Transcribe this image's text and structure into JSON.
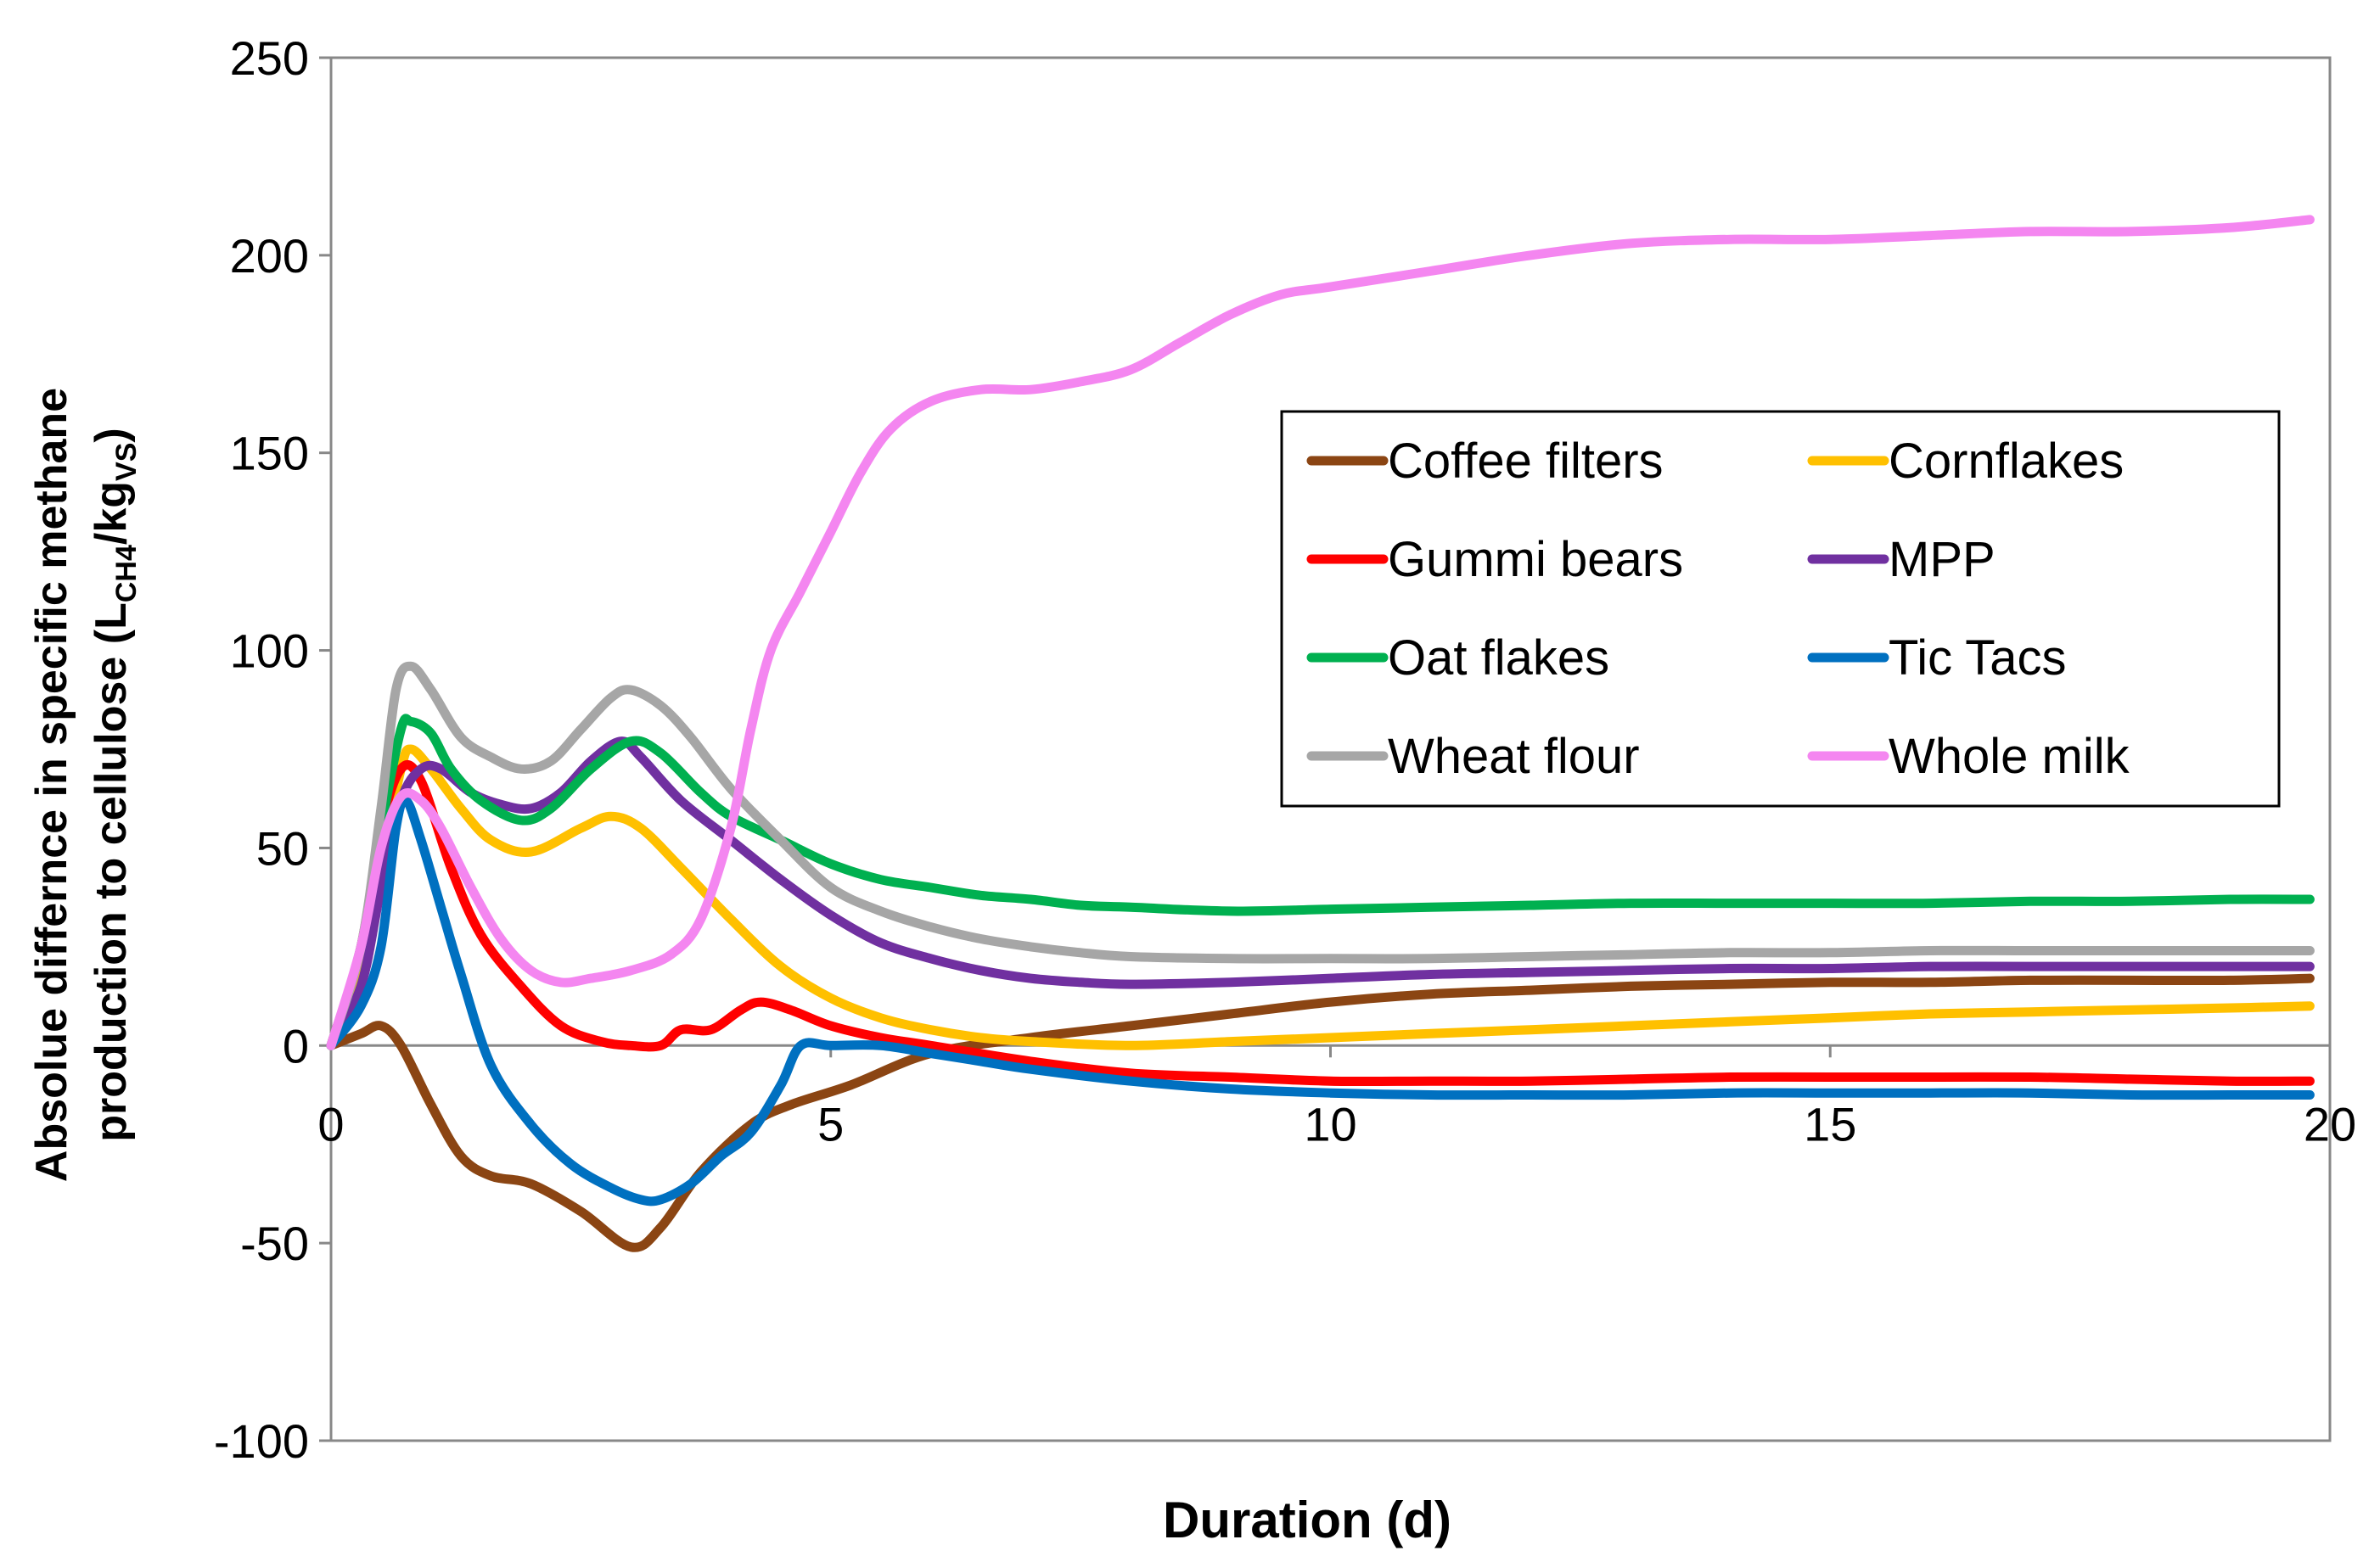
{
  "chart_data": {
    "type": "line",
    "title": "",
    "xlabel": "Duration (d)",
    "ylabel": {
      "line1": "Absolue differnce in specific methane",
      "line2_prefix": "production to cellulose (L",
      "sub1": "CH4",
      "mid": "/kg",
      "sub2": "VS",
      "suffix": ")"
    },
    "xlim": [
      0,
      20
    ],
    "ylim": [
      -100,
      250
    ],
    "xticks": [
      0,
      5,
      10,
      15,
      20
    ],
    "yticks": [
      -100,
      -50,
      0,
      50,
      100,
      150,
      200,
      250
    ],
    "grid": false,
    "legend_position": "upper-right",
    "series": [
      {
        "name": "Coffee filters",
        "color": "#8B4513",
        "points": [
          [
            0,
            0
          ],
          [
            0.3,
            3
          ],
          [
            0.5,
            5
          ],
          [
            0.7,
            0
          ],
          [
            1.0,
            -15
          ],
          [
            1.3,
            -28
          ],
          [
            1.6,
            -33
          ],
          [
            2.0,
            -35
          ],
          [
            2.5,
            -42
          ],
          [
            3.0,
            -51
          ],
          [
            3.3,
            -46
          ],
          [
            3.7,
            -32
          ],
          [
            4.2,
            -20
          ],
          [
            4.6,
            -15
          ],
          [
            5.2,
            -10
          ],
          [
            6.0,
            -2
          ],
          [
            7.0,
            2
          ],
          [
            8.0,
            5
          ],
          [
            9.0,
            8
          ],
          [
            10.0,
            11
          ],
          [
            11.0,
            13
          ],
          [
            12.0,
            14
          ],
          [
            13.0,
            15
          ],
          [
            14.0,
            15.5
          ],
          [
            15.0,
            16
          ],
          [
            16.0,
            16
          ],
          [
            17.0,
            16.5
          ],
          [
            18.0,
            16.5
          ],
          [
            19.0,
            16.5
          ],
          [
            19.8,
            17
          ]
        ]
      },
      {
        "name": "Cornflakes",
        "color": "#FFC000",
        "points": [
          [
            0,
            0
          ],
          [
            0.3,
            20
          ],
          [
            0.5,
            45
          ],
          [
            0.7,
            70
          ],
          [
            0.8,
            75
          ],
          [
            1.0,
            70
          ],
          [
            1.3,
            60
          ],
          [
            1.6,
            52
          ],
          [
            2.0,
            49
          ],
          [
            2.5,
            55
          ],
          [
            2.8,
            58
          ],
          [
            3.1,
            55
          ],
          [
            3.5,
            45
          ],
          [
            4.0,
            32
          ],
          [
            4.5,
            20
          ],
          [
            5.0,
            12
          ],
          [
            5.5,
            7
          ],
          [
            6.0,
            4
          ],
          [
            6.5,
            2
          ],
          [
            7.0,
            1
          ],
          [
            8.0,
            0
          ],
          [
            9.0,
            1
          ],
          [
            10.0,
            2
          ],
          [
            11.0,
            3
          ],
          [
            12.0,
            4
          ],
          [
            13.0,
            5
          ],
          [
            14.0,
            6
          ],
          [
            15.0,
            7
          ],
          [
            16.0,
            8
          ],
          [
            17.0,
            8.5
          ],
          [
            18.0,
            9
          ],
          [
            19.0,
            9.5
          ],
          [
            19.8,
            10
          ]
        ]
      },
      {
        "name": "Gummi bears",
        "color": "#FF0000",
        "points": [
          [
            0,
            0
          ],
          [
            0.3,
            25
          ],
          [
            0.5,
            55
          ],
          [
            0.7,
            70
          ],
          [
            0.9,
            67
          ],
          [
            1.2,
            45
          ],
          [
            1.5,
            28
          ],
          [
            1.9,
            15
          ],
          [
            2.3,
            5
          ],
          [
            2.7,
            1
          ],
          [
            3.0,
            0
          ],
          [
            3.3,
            0
          ],
          [
            3.5,
            4
          ],
          [
            3.8,
            4
          ],
          [
            4.1,
            9
          ],
          [
            4.3,
            11
          ],
          [
            4.6,
            9
          ],
          [
            5.0,
            5
          ],
          [
            5.5,
            2
          ],
          [
            6.0,
            0
          ],
          [
            7.0,
            -4
          ],
          [
            8.0,
            -7
          ],
          [
            9.0,
            -8
          ],
          [
            10.0,
            -9
          ],
          [
            11.0,
            -9
          ],
          [
            12.0,
            -9
          ],
          [
            13.0,
            -8.5
          ],
          [
            14.0,
            -8
          ],
          [
            15.0,
            -8
          ],
          [
            16.0,
            -8
          ],
          [
            17.0,
            -8
          ],
          [
            18.0,
            -8.5
          ],
          [
            19.0,
            -9
          ],
          [
            19.8,
            -9
          ]
        ]
      },
      {
        "name": "MPP",
        "color": "#7030A0",
        "points": [
          [
            0,
            0
          ],
          [
            0.3,
            15
          ],
          [
            0.5,
            40
          ],
          [
            0.7,
            62
          ],
          [
            0.9,
            70
          ],
          [
            1.1,
            70
          ],
          [
            1.4,
            64
          ],
          [
            1.7,
            61
          ],
          [
            2.0,
            60
          ],
          [
            2.3,
            64
          ],
          [
            2.6,
            72
          ],
          [
            2.9,
            77
          ],
          [
            3.1,
            73
          ],
          [
            3.5,
            62
          ],
          [
            4.0,
            52
          ],
          [
            4.5,
            42
          ],
          [
            5.0,
            33
          ],
          [
            5.5,
            26
          ],
          [
            6.0,
            22
          ],
          [
            6.5,
            19
          ],
          [
            7.0,
            17
          ],
          [
            7.5,
            16
          ],
          [
            8.0,
            15.5
          ],
          [
            9.0,
            16
          ],
          [
            10.0,
            17
          ],
          [
            11.0,
            18
          ],
          [
            12.0,
            18.5
          ],
          [
            13.0,
            19
          ],
          [
            14.0,
            19.5
          ],
          [
            15.0,
            19.5
          ],
          [
            16.0,
            20
          ],
          [
            17.0,
            20
          ],
          [
            18.0,
            20
          ],
          [
            19.0,
            20
          ],
          [
            19.8,
            20
          ]
        ]
      },
      {
        "name": "Oat flakes",
        "color": "#00B050",
        "points": [
          [
            0,
            0
          ],
          [
            0.3,
            25
          ],
          [
            0.5,
            55
          ],
          [
            0.7,
            80
          ],
          [
            0.8,
            82
          ],
          [
            1.0,
            79
          ],
          [
            1.2,
            70
          ],
          [
            1.5,
            62
          ],
          [
            1.9,
            57
          ],
          [
            2.2,
            60
          ],
          [
            2.6,
            70
          ],
          [
            3.0,
            77
          ],
          [
            3.3,
            74
          ],
          [
            3.7,
            64
          ],
          [
            4.0,
            58
          ],
          [
            4.5,
            52
          ],
          [
            5.0,
            46
          ],
          [
            5.5,
            42
          ],
          [
            6.0,
            40
          ],
          [
            6.5,
            38
          ],
          [
            7.0,
            37
          ],
          [
            7.5,
            35.5
          ],
          [
            8.0,
            35
          ],
          [
            9.0,
            34
          ],
          [
            10.0,
            34.5
          ],
          [
            11.0,
            35
          ],
          [
            12.0,
            35.5
          ],
          [
            13.0,
            36
          ],
          [
            14.0,
            36
          ],
          [
            15.0,
            36
          ],
          [
            16.0,
            36
          ],
          [
            17.0,
            36.5
          ],
          [
            18.0,
            36.5
          ],
          [
            19.0,
            37
          ],
          [
            19.8,
            37
          ]
        ]
      },
      {
        "name": "Tic Tacs",
        "color": "#0070C0",
        "points": [
          [
            0,
            0
          ],
          [
            0.3,
            10
          ],
          [
            0.5,
            25
          ],
          [
            0.65,
            55
          ],
          [
            0.75,
            62
          ],
          [
            0.9,
            52
          ],
          [
            1.1,
            35
          ],
          [
            1.3,
            18
          ],
          [
            1.6,
            -5
          ],
          [
            2.0,
            -20
          ],
          [
            2.4,
            -30
          ],
          [
            2.8,
            -36
          ],
          [
            3.1,
            -39
          ],
          [
            3.3,
            -39
          ],
          [
            3.6,
            -35
          ],
          [
            3.9,
            -28
          ],
          [
            4.2,
            -22
          ],
          [
            4.5,
            -10
          ],
          [
            4.7,
            0
          ],
          [
            5.0,
            0
          ],
          [
            5.5,
            0
          ],
          [
            6.0,
            -2
          ],
          [
            6.5,
            -4
          ],
          [
            7.0,
            -6
          ],
          [
            8.0,
            -9
          ],
          [
            9.0,
            -11
          ],
          [
            10.0,
            -12
          ],
          [
            11.0,
            -12.5
          ],
          [
            12.0,
            -12.5
          ],
          [
            13.0,
            -12.5
          ],
          [
            14.0,
            -12
          ],
          [
            15.0,
            -12
          ],
          [
            16.0,
            -12
          ],
          [
            17.0,
            -12
          ],
          [
            18.0,
            -12.5
          ],
          [
            19.0,
            -12.5
          ],
          [
            19.8,
            -12.5
          ]
        ]
      },
      {
        "name": "Wheat flour",
        "color": "#A6A6A6",
        "points": [
          [
            0,
            0
          ],
          [
            0.3,
            25
          ],
          [
            0.5,
            60
          ],
          [
            0.65,
            90
          ],
          [
            0.8,
            96
          ],
          [
            1.0,
            90
          ],
          [
            1.3,
            78
          ],
          [
            1.6,
            73
          ],
          [
            1.9,
            70
          ],
          [
            2.2,
            72
          ],
          [
            2.5,
            80
          ],
          [
            2.8,
            88
          ],
          [
            3.0,
            90
          ],
          [
            3.3,
            86
          ],
          [
            3.6,
            78
          ],
          [
            4.0,
            65
          ],
          [
            4.5,
            52
          ],
          [
            5.0,
            40
          ],
          [
            5.5,
            34
          ],
          [
            6.0,
            30
          ],
          [
            6.5,
            27
          ],
          [
            7.0,
            25
          ],
          [
            7.5,
            23.5
          ],
          [
            8.0,
            22.5
          ],
          [
            9.0,
            22
          ],
          [
            10.0,
            22
          ],
          [
            11.0,
            22
          ],
          [
            12.0,
            22.5
          ],
          [
            13.0,
            23
          ],
          [
            14.0,
            23.5
          ],
          [
            15.0,
            23.5
          ],
          [
            16.0,
            24
          ],
          [
            17.0,
            24
          ],
          [
            18.0,
            24
          ],
          [
            19.0,
            24
          ],
          [
            19.8,
            24
          ]
        ]
      },
      {
        "name": "Whole milk",
        "color": "#F486F0",
        "points": [
          [
            0,
            0
          ],
          [
            0.3,
            25
          ],
          [
            0.5,
            50
          ],
          [
            0.7,
            63
          ],
          [
            0.9,
            62
          ],
          [
            1.1,
            55
          ],
          [
            1.4,
            40
          ],
          [
            1.7,
            27
          ],
          [
            2.0,
            19
          ],
          [
            2.3,
            16
          ],
          [
            2.6,
            17
          ],
          [
            3.0,
            19
          ],
          [
            3.4,
            23
          ],
          [
            3.7,
            32
          ],
          [
            4.0,
            55
          ],
          [
            4.2,
            80
          ],
          [
            4.4,
            100
          ],
          [
            4.7,
            115
          ],
          [
            5.0,
            130
          ],
          [
            5.3,
            145
          ],
          [
            5.6,
            156
          ],
          [
            6.0,
            163
          ],
          [
            6.5,
            166
          ],
          [
            7.0,
            166
          ],
          [
            7.5,
            168
          ],
          [
            8.0,
            171
          ],
          [
            8.5,
            178
          ],
          [
            9.0,
            185
          ],
          [
            9.5,
            190
          ],
          [
            10.0,
            192
          ],
          [
            11.0,
            196
          ],
          [
            12.0,
            200
          ],
          [
            13.0,
            203
          ],
          [
            14.0,
            204
          ],
          [
            15.0,
            204
          ],
          [
            16.0,
            205
          ],
          [
            17.0,
            206
          ],
          [
            18.0,
            206
          ],
          [
            19.0,
            207
          ],
          [
            19.8,
            209
          ]
        ]
      }
    ]
  }
}
